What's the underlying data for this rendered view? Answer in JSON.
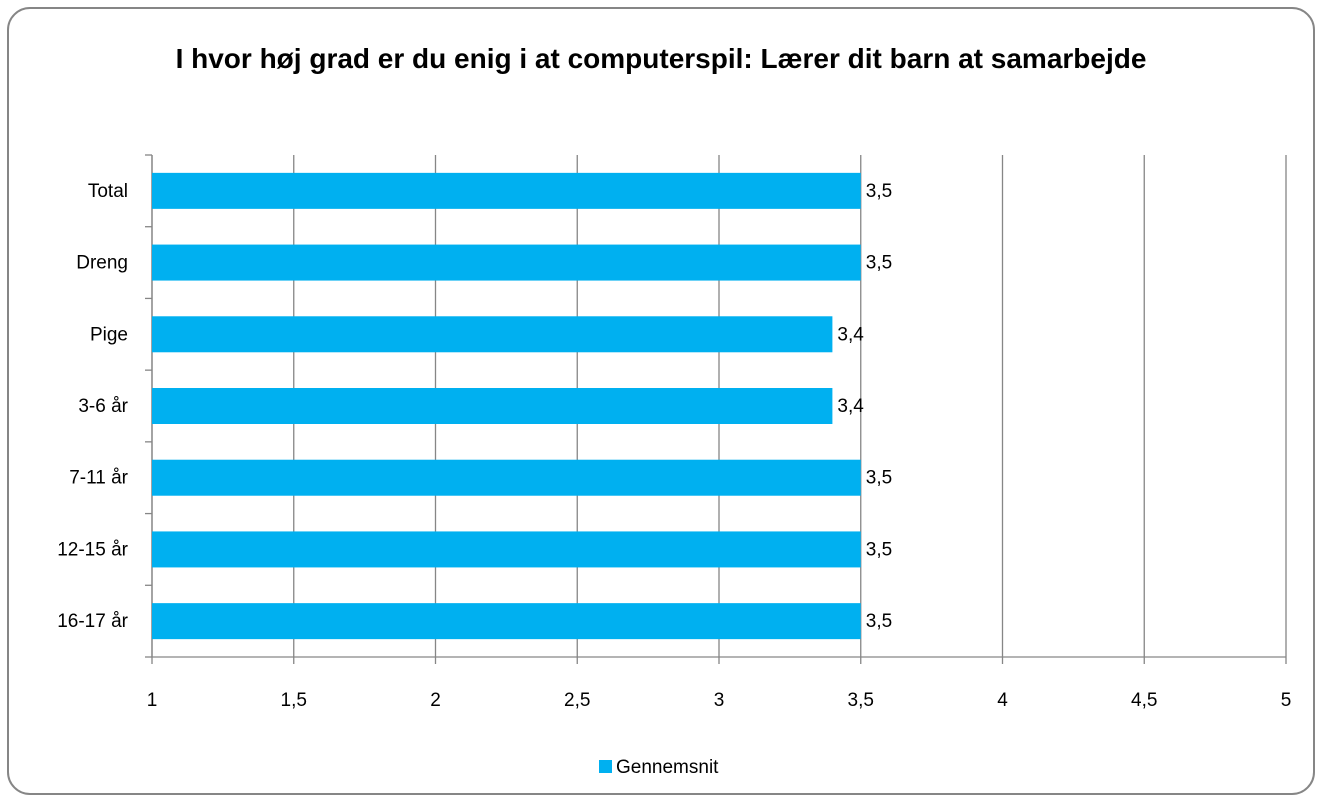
{
  "chart_data": {
    "type": "hbar",
    "title": "I hvor høj grad er du enig i at computerspil: Lærer dit barn at samarbejde",
    "categories": [
      "Total",
      "Dreng",
      "Pige",
      "3-6 år",
      "7-11 år",
      "12-15 år",
      "16-17 år"
    ],
    "series": [
      {
        "name": "Gennemsnit",
        "color": "#00b0f0",
        "values": [
          3.5,
          3.5,
          3.4,
          3.4,
          3.5,
          3.5,
          3.5
        ],
        "value_labels": [
          "3,5",
          "3,5",
          "3,4",
          "3,4",
          "3,5",
          "3,5",
          "3,5"
        ]
      }
    ],
    "xlim": [
      1,
      5
    ],
    "xticks": [
      1,
      {
        "value": 1.5,
        "label": "1,5"
      },
      2,
      {
        "value": 2.5,
        "label": "2,5"
      },
      3,
      {
        "value": 3.5,
        "label": "3,5"
      },
      4,
      {
        "value": 4.5,
        "label": "4,5"
      },
      5
    ],
    "grid": true,
    "legend": "bottom"
  }
}
